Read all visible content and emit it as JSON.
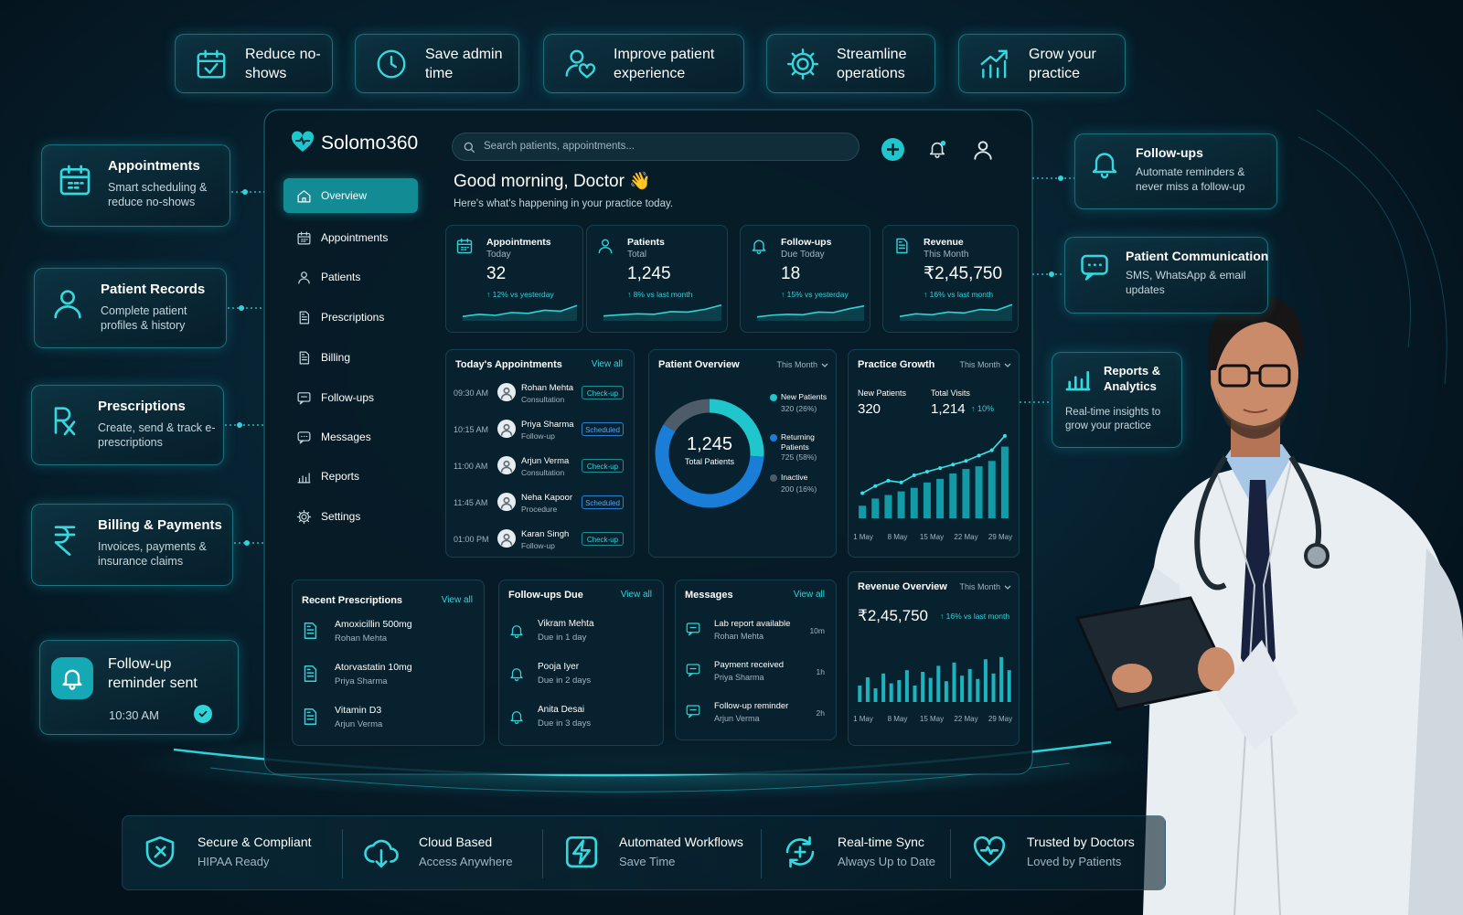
{
  "benefits": [
    "Reduce no-shows",
    "Save admin time",
    "Improve patient experience",
    "Streamline operations",
    "Grow your practice"
  ],
  "features_left": [
    {
      "title": "Appointments",
      "text": "Smart scheduling & reduce no-shows"
    },
    {
      "title": "Patient Records",
      "text": "Complete patient profiles & history"
    },
    {
      "title": "Prescriptions",
      "text": "Create, send & track e-prescriptions"
    },
    {
      "title": "Billing & Payments",
      "text": "Invoices, payments & insurance claims"
    }
  ],
  "notification": {
    "title": "Follow-up reminder sent",
    "time": "10:30 AM"
  },
  "features_right": [
    {
      "title": "Follow-ups",
      "text": "Automate reminders & never miss a follow-up"
    },
    {
      "title": "Patient Communication",
      "text": "SMS, WhatsApp & email updates"
    },
    {
      "title": "Reports & Analytics",
      "text": "Real-time insights to grow your practice"
    }
  ],
  "trust": [
    {
      "title": "Secure & Compliant",
      "text": "HIPAA Ready"
    },
    {
      "title": "Cloud Based",
      "text": "Access Anywhere"
    },
    {
      "title": "Automated Workflows",
      "text": "Save Time"
    },
    {
      "title": "Real-time Sync",
      "text": "Always Up to Date"
    },
    {
      "title": "Trusted by Doctors",
      "text": "Loved by Patients"
    }
  ],
  "dashboard": {
    "brand": "Solomo360",
    "search": "Search patients, appointments...",
    "nav": [
      "Overview",
      "Appointments",
      "Patients",
      "Prescriptions",
      "Billing",
      "Follow-ups",
      "Messages",
      "Reports",
      "Settings"
    ],
    "greeting": "Good morning, Doctor 👋",
    "subtitle": "Here's what's happening in your practice today.",
    "stats": [
      {
        "label": "Appointments",
        "sub": "Today",
        "value": "32",
        "change": "↑ 12% vs yesterday",
        "trend": [
          20,
          30,
          25,
          38,
          34,
          48,
          44,
          70
        ],
        "ylim": [
          0,
          100
        ]
      },
      {
        "label": "Patients",
        "sub": "Total",
        "value": "1,245",
        "change": "↑ 8% vs last month",
        "trend": [
          22,
          28,
          32,
          30,
          42,
          40,
          52,
          72
        ],
        "ylim": [
          0,
          100
        ]
      },
      {
        "label": "Follow-ups",
        "sub": "Due Today",
        "value": "18",
        "change": "↑ 15% vs yesterday",
        "trend": [
          18,
          26,
          30,
          28,
          40,
          38,
          55,
          68
        ],
        "ylim": [
          0,
          100
        ]
      },
      {
        "label": "Revenue",
        "sub": "This Month",
        "value": "₹2,45,750",
        "change": "↑ 16% vs last month",
        "trend": [
          20,
          32,
          28,
          40,
          36,
          52,
          48,
          74
        ],
        "ylim": [
          0,
          100
        ]
      }
    ],
    "appointments": {
      "title": "Today's Appointments",
      "link": "View all",
      "items": [
        {
          "time": "09:30 AM",
          "name": "Rohan Mehta",
          "type": "Consultation",
          "status": "Check-up"
        },
        {
          "time": "10:15 AM",
          "name": "Priya Sharma",
          "type": "Follow-up",
          "status": "Scheduled"
        },
        {
          "time": "11:00 AM",
          "name": "Arjun Verma",
          "type": "Consultation",
          "status": "Check-up"
        },
        {
          "time": "11:45 AM",
          "name": "Neha Kapoor",
          "type": "Procedure",
          "status": "Scheduled"
        },
        {
          "time": "01:00 PM",
          "name": "Karan Singh",
          "type": "Follow-up",
          "status": "Check-up"
        }
      ]
    },
    "overview": {
      "title": "Patient Overview",
      "filter": "This Month",
      "total": "1,245",
      "total_label": "Total Patients",
      "segments": [
        {
          "name": "New Patients",
          "label": "320 (26%)",
          "value": 26,
          "color": "#1fc6cc"
        },
        {
          "name": "Returning Patients",
          "label": "725 (58%)",
          "value": 58,
          "color": "#1a7ed8"
        },
        {
          "name": "Inactive",
          "label": "200 (16%)",
          "value": 16,
          "color": "#4d5c68"
        }
      ]
    },
    "growth": {
      "title": "Practice Growth",
      "filter": "This Month",
      "new_label": "New Patients",
      "new_value": "320",
      "visits_label": "Total Visits",
      "visits_value": "1,214",
      "visits_change": "↑ 10%",
      "bars": [
        14,
        22,
        26,
        30,
        34,
        40,
        44,
        50,
        55,
        58,
        64,
        80
      ],
      "line": [
        28,
        36,
        42,
        40,
        48,
        52,
        56,
        60,
        64,
        70,
        76,
        92
      ],
      "ylim": [
        0,
        100
      ],
      "xlabels": [
        "1 May",
        "8 May",
        "15 May",
        "22 May",
        "29 May"
      ]
    },
    "prescriptions": {
      "title": "Recent Prescriptions",
      "link": "View all",
      "items": [
        {
          "drug": "Amoxicillin 500mg",
          "patient": "Rohan Mehta"
        },
        {
          "drug": "Atorvastatin 10mg",
          "patient": "Priya Sharma"
        },
        {
          "drug": "Vitamin D3",
          "patient": "Arjun Verma"
        }
      ]
    },
    "followups": {
      "title": "Follow-ups Due",
      "link": "View all",
      "items": [
        {
          "name": "Vikram Mehta",
          "due": "Due in 1 day"
        },
        {
          "name": "Pooja Iyer",
          "due": "Due in 2 days"
        },
        {
          "name": "Anita Desai",
          "due": "Due in 3 days"
        }
      ]
    },
    "messages": {
      "title": "Messages",
      "link": "View all",
      "items": [
        {
          "title": "Lab report available",
          "from": "Rohan Mehta",
          "time": "10m"
        },
        {
          "title": "Payment received",
          "from": "Priya Sharma",
          "time": "1h"
        },
        {
          "title": "Follow-up reminder",
          "from": "Arjun Verma",
          "time": "2h"
        }
      ]
    },
    "revenue": {
      "title": "Revenue Overview",
      "filter": "This Month",
      "value": "₹2,45,750",
      "change": "↑ 16% vs last month",
      "bars": [
        30,
        45,
        25,
        52,
        34,
        40,
        58,
        30,
        55,
        44,
        66,
        38,
        72,
        48,
        60,
        42,
        78,
        52,
        82,
        58
      ],
      "ylim": [
        0,
        100
      ],
      "xlabels": [
        "1 May",
        "8 May",
        "15 May",
        "22 May",
        "29 May"
      ]
    }
  }
}
